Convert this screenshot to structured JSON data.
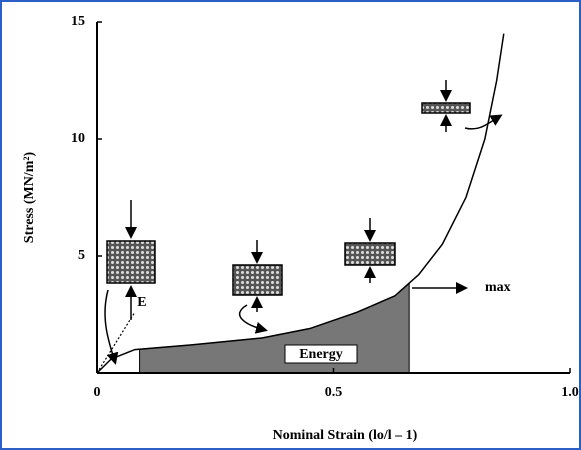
{
  "chart_data": {
    "type": "line",
    "y_label": "Stress (MN/m²)",
    "x_label": "Nominal Strain  (lo/l – 1)",
    "xlim": [
      0,
      1
    ],
    "ylim": [
      0,
      15
    ],
    "xticks": [
      0,
      0.5,
      {
        "value": 1,
        "label": "1.0"
      }
    ],
    "yticks": [
      5,
      10,
      15
    ],
    "series": [
      {
        "color": "#000000",
        "x": [
          0,
          0.03,
          0.08,
          0.2,
          0.35,
          0.45,
          0.55,
          0.63,
          0.68,
          0.73,
          0.78,
          0.82,
          0.845,
          0.86
        ],
        "values": [
          0,
          0.6,
          1.0,
          1.2,
          1.5,
          1.9,
          2.6,
          3.3,
          4.2,
          5.5,
          7.5,
          10,
          12.5,
          14.5
        ]
      }
    ],
    "shaded_range": [
      0.09,
      0.66
    ],
    "shaded_label": "Energy",
    "modulus_label": "E",
    "max_label": "max"
  }
}
